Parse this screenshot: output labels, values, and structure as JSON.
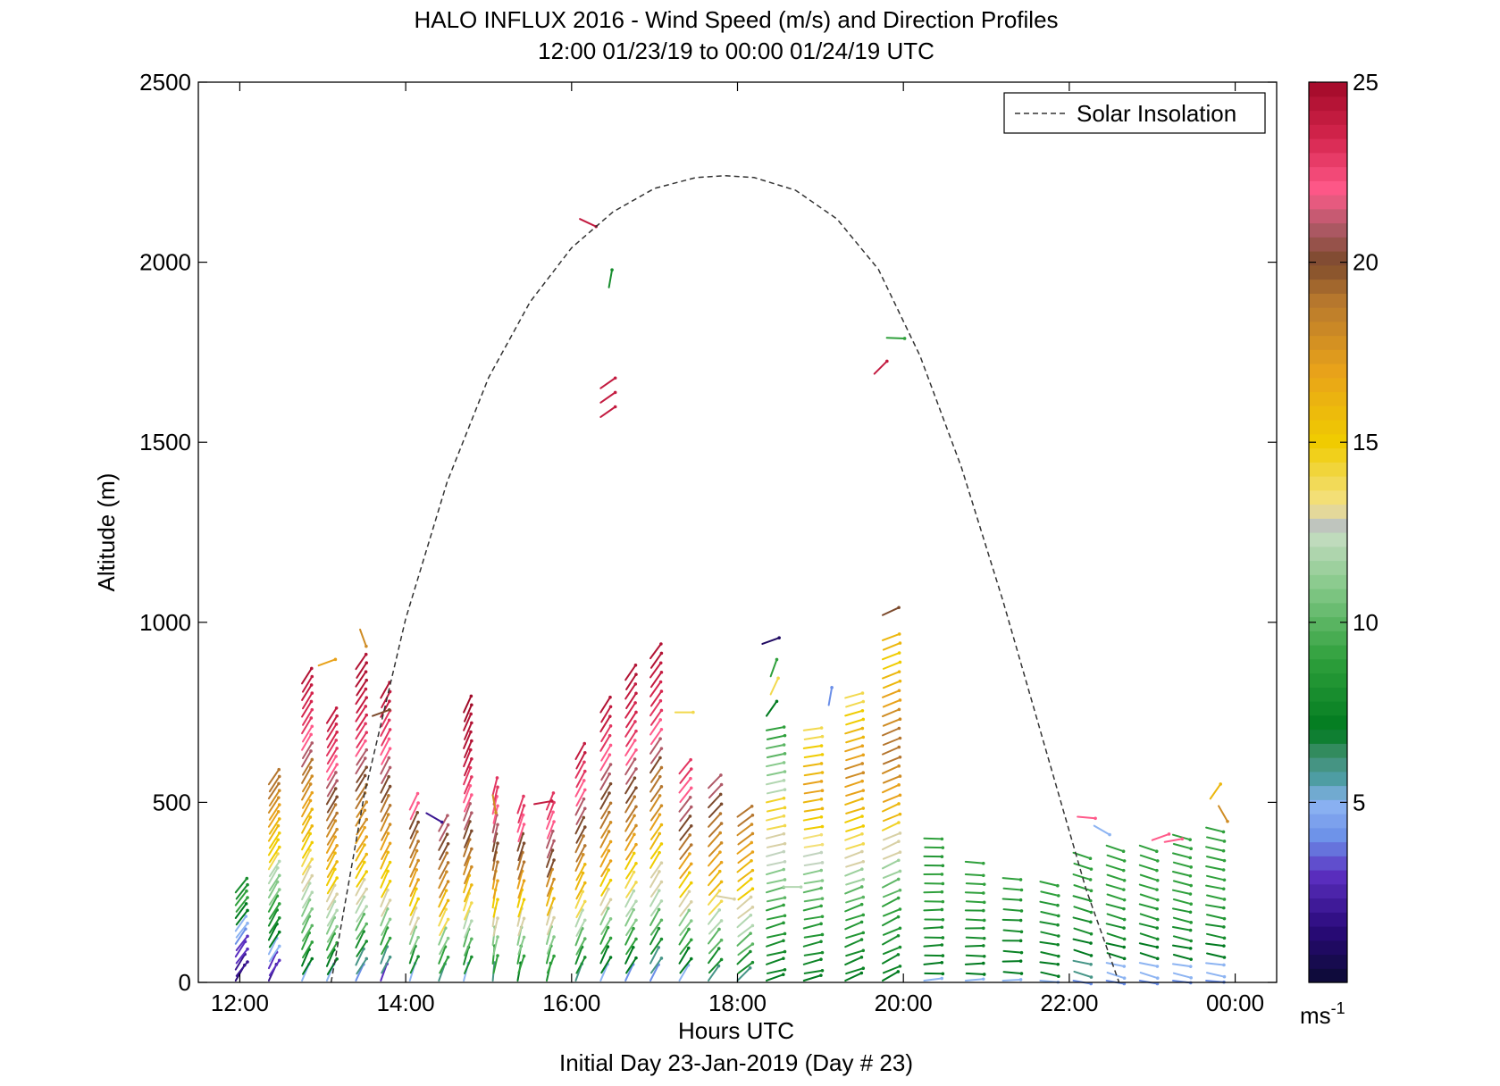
{
  "chart_data": {
    "type": "vector-field",
    "title": "HALO INFLUX 2016 - Wind Speed (m/s) and Direction Profiles",
    "subtitle": "12:00 01/23/19 to 00:00 01/24/19  UTC",
    "xlabel": "Hours UTC",
    "xlabel2": "Initial Day 23-Jan-2019 (Day # 23)",
    "ylabel": "Altitude (m)",
    "xlim": [
      11.5,
      24.5
    ],
    "ylim": [
      0,
      2500
    ],
    "x_ticks": [
      {
        "value": 12,
        "label": "12:00"
      },
      {
        "value": 14,
        "label": "14:00"
      },
      {
        "value": 16,
        "label": "16:00"
      },
      {
        "value": 18,
        "label": "18:00"
      },
      {
        "value": 20,
        "label": "20:00"
      },
      {
        "value": 22,
        "label": "22:00"
      },
      {
        "value": 24,
        "label": "00:00"
      }
    ],
    "y_ticks": [
      {
        "value": 0,
        "label": "0"
      },
      {
        "value": 500,
        "label": "500"
      },
      {
        "value": 1000,
        "label": "1000"
      },
      {
        "value": 1500,
        "label": "1500"
      },
      {
        "value": 2000,
        "label": "2000"
      },
      {
        "value": 2500,
        "label": "2500"
      }
    ],
    "legend": {
      "label": "Solar Insolation",
      "placement": "top-right",
      "style": "dashed black line"
    },
    "solar_insolation": {
      "shape": "parabolic arc, dashed",
      "start_hour": 13.1,
      "peak_hour": 17.85,
      "end_hour": 22.6,
      "peak_altitude": 2240,
      "points": [
        [
          13.1,
          0
        ],
        [
          13.5,
          520
        ],
        [
          14.0,
          1010
        ],
        [
          14.5,
          1390
        ],
        [
          15.0,
          1680
        ],
        [
          15.5,
          1890
        ],
        [
          16.0,
          2040
        ],
        [
          16.5,
          2140
        ],
        [
          17.0,
          2205
        ],
        [
          17.5,
          2235
        ],
        [
          17.85,
          2240
        ],
        [
          18.2,
          2235
        ],
        [
          18.7,
          2200
        ],
        [
          19.2,
          2120
        ],
        [
          19.7,
          1980
        ],
        [
          20.2,
          1740
        ],
        [
          20.7,
          1430
        ],
        [
          21.2,
          1060
        ],
        [
          21.7,
          660
        ],
        [
          22.2,
          260
        ],
        [
          22.6,
          0
        ]
      ]
    },
    "colorbar": {
      "min": 0,
      "max": 25,
      "ticks": [
        {
          "value": 5,
          "label": "5"
        },
        {
          "value": 10,
          "label": "10"
        },
        {
          "value": 15,
          "label": "15"
        },
        {
          "value": 20,
          "label": "20"
        },
        {
          "value": 25,
          "label": "25"
        }
      ],
      "unit_label": "ms",
      "unit_exponent": "-1",
      "colormap": [
        [
          0,
          "#0b0b33"
        ],
        [
          1.5,
          "#2a0a7a"
        ],
        [
          3,
          "#5b2fc0"
        ],
        [
          4,
          "#6b8fe8"
        ],
        [
          5,
          "#8db4f2"
        ],
        [
          5.6,
          "#4f9ea8"
        ],
        [
          6.3,
          "#3f8f6f"
        ],
        [
          7,
          "#007a1f"
        ],
        [
          9,
          "#2fa03c"
        ],
        [
          11,
          "#86c98a"
        ],
        [
          12.4,
          "#c3dcc0"
        ],
        [
          12.8,
          "#bdbdbd"
        ],
        [
          13.2,
          "#f3e38c"
        ],
        [
          15,
          "#f0cc00"
        ],
        [
          17,
          "#e8a21a"
        ],
        [
          19,
          "#b5762e"
        ],
        [
          20,
          "#7c4a2c"
        ],
        [
          21,
          "#b05a68"
        ],
        [
          22,
          "#ff5a8a"
        ],
        [
          23.5,
          "#d4244c"
        ],
        [
          25,
          "#a10a28"
        ]
      ]
    },
    "wind_profiles": {
      "arrow_encoding": "arrow points in wind direction, colour = wind speed (m/s)",
      "profiles": [
        {
          "time": 11.95,
          "top": 250,
          "dir": 35,
          "speeds": [
            1.5,
            2,
            3,
            4,
            5,
            7,
            9,
            8
          ]
        },
        {
          "time": 12.35,
          "top": 550,
          "dir": 30,
          "speeds": [
            2,
            3,
            5,
            7,
            8,
            9,
            11,
            12,
            14,
            15,
            16,
            17,
            18,
            19,
            19
          ]
        },
        {
          "time": 12.75,
          "top": 830,
          "dir": 28,
          "speeds": [
            5,
            7,
            9,
            10,
            11,
            12,
            13,
            14,
            15,
            16,
            17,
            18,
            19,
            21,
            22,
            23,
            23.5,
            24,
            24.5
          ]
        },
        {
          "time": 13.05,
          "top": 720,
          "dir": 28,
          "speeds": [
            5,
            7,
            9,
            11,
            12,
            13,
            15,
            16,
            17,
            18,
            19,
            20,
            21,
            22,
            23,
            23.5,
            24
          ]
        },
        {
          "time": 13.4,
          "top": 870,
          "dir": 30,
          "speeds": [
            4,
            6,
            8,
            10,
            12,
            13,
            15,
            16,
            17,
            18,
            19,
            20,
            21,
            22,
            23,
            23.5,
            24,
            24.5,
            24.5
          ]
        },
        {
          "time": 13.7,
          "top": 790,
          "dir": 25,
          "speeds": [
            3,
            6,
            9,
            11,
            13,
            15,
            16,
            17,
            18,
            19,
            20,
            21,
            22,
            23,
            24,
            24.5
          ]
        },
        {
          "time": 14.05,
          "top": 480,
          "dir": 22,
          "speeds": [
            5,
            8,
            11,
            13,
            15,
            17,
            18,
            19,
            20,
            22
          ]
        },
        {
          "time": 14.4,
          "top": 420,
          "dir": 25,
          "speeds": [
            6,
            9,
            11,
            14,
            16,
            18,
            19,
            20,
            21
          ]
        },
        {
          "time": 14.7,
          "top": 750,
          "dir": 20,
          "speeds": [
            5,
            8,
            10,
            12,
            14,
            16,
            18,
            19,
            20,
            21,
            22,
            23,
            24,
            24.5,
            24.5,
            25
          ]
        },
        {
          "time": 15.05,
          "top": 520,
          "dir": 10,
          "speeds": [
            6,
            9,
            11,
            13,
            15,
            17,
            19,
            20,
            21,
            22,
            23
          ]
        },
        {
          "time": 15.35,
          "top": 470,
          "dir": 15,
          "speeds": [
            7,
            9,
            11,
            13,
            15,
            17,
            19,
            20,
            22,
            23
          ]
        },
        {
          "time": 15.7,
          "top": 480,
          "dir": 18,
          "speeds": [
            8,
            9,
            11,
            13,
            16,
            18,
            20,
            21,
            22,
            23
          ]
        },
        {
          "time": 16.05,
          "top": 620,
          "dir": 25,
          "speeds": [
            6,
            8,
            10,
            12,
            14,
            16,
            18,
            19,
            20,
            21,
            22,
            23,
            24
          ]
        },
        {
          "time": 16.35,
          "top": 750,
          "dir": 28,
          "speeds": [
            5,
            7,
            9,
            11,
            13,
            15,
            17,
            18,
            19,
            20,
            21,
            22,
            23,
            24,
            24.5
          ]
        },
        {
          "time": 16.65,
          "top": 840,
          "dir": 30,
          "speeds": [
            4,
            7,
            9,
            11,
            12,
            14,
            15,
            17,
            18,
            19,
            20,
            21,
            22,
            23,
            23.5,
            24,
            24.5
          ]
        },
        {
          "time": 16.95,
          "top": 900,
          "dir": 32,
          "speeds": [
            4,
            6,
            8,
            10,
            12,
            13,
            15,
            16,
            17,
            18,
            19,
            20,
            21,
            22,
            23,
            23.5,
            24,
            24.5
          ]
        },
        {
          "time": 17.3,
          "top": 580,
          "dir": 35,
          "speeds": [
            5,
            7,
            9,
            11,
            13,
            15,
            17,
            19,
            20,
            21,
            22,
            23
          ]
        },
        {
          "time": 17.65,
          "top": 540,
          "dir": 40,
          "speeds": [
            6,
            8,
            10,
            12,
            14,
            16,
            17,
            18,
            19,
            20,
            21
          ]
        },
        {
          "time": 18.0,
          "top": 460,
          "dir": 50,
          "speeds": [
            6,
            8,
            10,
            12,
            13,
            15,
            16,
            17,
            18,
            19
          ]
        },
        {
          "time": 18.35,
          "top": 700,
          "dir": 75,
          "speeds": [
            7,
            7.5,
            8,
            8.5,
            9,
            10,
            11,
            12.5,
            13,
            14,
            14.5,
            12,
            11,
            10,
            9
          ]
        },
        {
          "time": 18.8,
          "top": 700,
          "dir": 78,
          "speeds": [
            7,
            7.5,
            8,
            8.5,
            9,
            10,
            11,
            12.5,
            13.5,
            15,
            16,
            17,
            16,
            15,
            14
          ]
        },
        {
          "time": 19.3,
          "top": 790,
          "dir": 70,
          "speeds": [
            7,
            7.5,
            8,
            8.5,
            9,
            10,
            11.5,
            13,
            14,
            15,
            16,
            17,
            18,
            17,
            16,
            15,
            14
          ]
        },
        {
          "time": 19.75,
          "top": 950,
          "dir": 65,
          "speeds": [
            7,
            7.5,
            8,
            8.5,
            9,
            10,
            11.5,
            13,
            14.5,
            16,
            17,
            18,
            19,
            19,
            18,
            17,
            16,
            15,
            16
          ]
        },
        {
          "time": 20.25,
          "top": 400,
          "dir": 88,
          "speeds": [
            5,
            7,
            7.5,
            8,
            8.5,
            9,
            9,
            8.5,
            9
          ]
        },
        {
          "time": 20.75,
          "top": 300,
          "dir": 90,
          "speeds": [
            5,
            7,
            7.5,
            8,
            8.5,
            9,
            9
          ]
        },
        {
          "time": 21.2,
          "top": 290,
          "dir": 92,
          "speeds": [
            5,
            7,
            7.5,
            8,
            8.5,
            9
          ]
        },
        {
          "time": 21.65,
          "top": 280,
          "dir": 100,
          "speeds": [
            5,
            7,
            7.5,
            8,
            8.5,
            9
          ]
        },
        {
          "time": 22.05,
          "top": 360,
          "dir": 105,
          "speeds": [
            4,
            6,
            7,
            8,
            8.5,
            9,
            9
          ]
        },
        {
          "time": 22.45,
          "top": 380,
          "dir": 105,
          "speeds": [
            4,
            5,
            7,
            8,
            8.5,
            9,
            9,
            9
          ]
        },
        {
          "time": 22.85,
          "top": 380,
          "dir": 105,
          "speeds": [
            4,
            5,
            7,
            8,
            8.5,
            9,
            9,
            9
          ]
        },
        {
          "time": 23.25,
          "top": 410,
          "dir": 102,
          "speeds": [
            4,
            5,
            7,
            8,
            8.5,
            9,
            9,
            9,
            9
          ]
        },
        {
          "time": 23.65,
          "top": 430,
          "dir": 100,
          "speeds": [
            4,
            5,
            7,
            8,
            8.5,
            9,
            9,
            9,
            9
          ]
        }
      ],
      "isolated_vectors": [
        {
          "time": 16.1,
          "alt": 2120,
          "dir": 115,
          "speed": 24
        },
        {
          "time": 16.45,
          "alt": 1930,
          "dir": 10,
          "speed": 8
        },
        {
          "time": 16.35,
          "alt": 1650,
          "dir": 55,
          "speed": 24
        },
        {
          "time": 16.35,
          "alt": 1610,
          "dir": 55,
          "speed": 24
        },
        {
          "time": 16.35,
          "alt": 1570,
          "dir": 55,
          "speed": 24
        },
        {
          "time": 19.8,
          "alt": 1790,
          "dir": 92,
          "speed": 9
        },
        {
          "time": 19.65,
          "alt": 1690,
          "dir": 45,
          "speed": 24
        },
        {
          "time": 19.75,
          "alt": 1020,
          "dir": 65,
          "speed": 20
        },
        {
          "time": 18.3,
          "alt": 940,
          "dir": 70,
          "speed": 1
        },
        {
          "time": 18.4,
          "alt": 850,
          "dir": 20,
          "speed": 9
        },
        {
          "time": 18.4,
          "alt": 800,
          "dir": 25,
          "speed": 14
        },
        {
          "time": 18.35,
          "alt": 740,
          "dir": 35,
          "speed": 7
        },
        {
          "time": 19.1,
          "alt": 770,
          "dir": 10,
          "speed": 4
        },
        {
          "time": 17.25,
          "alt": 750,
          "dir": 90,
          "speed": 14
        },
        {
          "time": 12.95,
          "alt": 880,
          "dir": 70,
          "speed": 17
        },
        {
          "time": 13.45,
          "alt": 980,
          "dir": 160,
          "speed": 18
        },
        {
          "time": 13.6,
          "alt": 740,
          "dir": 70,
          "speed": 20
        },
        {
          "time": 14.25,
          "alt": 470,
          "dir": 120,
          "speed": 2
        },
        {
          "time": 15.55,
          "alt": 495,
          "dir": 80,
          "speed": 24
        },
        {
          "time": 15.05,
          "alt": 520,
          "dir": 170,
          "speed": 18
        },
        {
          "time": 20.75,
          "alt": 335,
          "dir": 95,
          "speed": 9
        },
        {
          "time": 22.1,
          "alt": 460,
          "dir": 95,
          "speed": 22
        },
        {
          "time": 22.3,
          "alt": 435,
          "dir": 120,
          "speed": 5
        },
        {
          "time": 23.0,
          "alt": 395,
          "dir": 70,
          "speed": 22
        },
        {
          "time": 23.15,
          "alt": 390,
          "dir": 80,
          "speed": 22
        },
        {
          "time": 23.7,
          "alt": 510,
          "dir": 35,
          "speed": 16
        },
        {
          "time": 23.8,
          "alt": 490,
          "dir": 150,
          "speed": 18
        },
        {
          "time": 17.75,
          "alt": 240,
          "dir": 100,
          "speed": 13
        },
        {
          "time": 18.55,
          "alt": 265,
          "dir": 90,
          "speed": 12
        }
      ]
    }
  }
}
